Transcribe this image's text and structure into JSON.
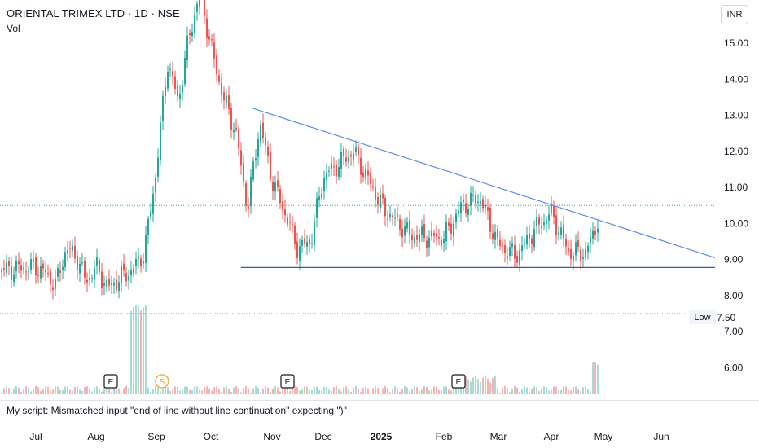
{
  "header": {
    "symbol": "ORIENTAL TRIMEX LTD",
    "interval": "1D",
    "exchange": "NSE",
    "separator": " · ",
    "volume_label": "Vol",
    "currency_button": "INR"
  },
  "script_error": "My script: Mismatched input \"end of line without line continuation\" expecting \")\"",
  "low_marker": {
    "label": "Low",
    "value": "7.50"
  },
  "colors": {
    "up": "#26a69a",
    "down": "#ef5350",
    "trendline": "#5b8def",
    "support": "#2b5db0",
    "last_price": "#26a69a",
    "event_e": "#131722",
    "event_s": "#f0a32a"
  },
  "chart_data": {
    "type": "candlestick",
    "y_axis": {
      "ticks": [
        "6.00",
        "7.00",
        "8.00",
        "9.00",
        "10.00",
        "11.00",
        "12.00",
        "13.00",
        "14.00",
        "15.00"
      ],
      "range": [
        5.4,
        16.2
      ]
    },
    "x_axis": {
      "ticks": [
        "Jul",
        "Aug",
        "Sep",
        "Oct",
        "Nov",
        "Dec",
        "2025",
        "Feb",
        "Mar",
        "Apr",
        "May",
        "Jun"
      ]
    },
    "price_path": [
      [
        "Jul",
        8.8
      ],
      [
        "Jul",
        8.6
      ],
      [
        "Jul",
        8.3
      ],
      [
        "Jul",
        9.3
      ],
      [
        "Jul",
        9.1
      ],
      [
        "Jul",
        8.4
      ],
      [
        "Aug",
        8.8
      ],
      [
        "Aug",
        8.2
      ],
      [
        "Aug",
        8.5
      ],
      [
        "Aug",
        8.7
      ],
      [
        "Aug",
        9.2
      ],
      [
        "Sep",
        11.5
      ],
      [
        "Sep",
        14.5
      ],
      [
        "Sep",
        13.4
      ],
      [
        "Sep",
        15.2
      ],
      [
        "Sep",
        16.4
      ],
      [
        "Oct",
        14.9
      ],
      [
        "Oct",
        13.5
      ],
      [
        "Oct",
        12.6
      ],
      [
        "Oct",
        10.4
      ],
      [
        "Oct",
        12.8
      ],
      [
        "Nov",
        11.2
      ],
      [
        "Nov",
        10.3
      ],
      [
        "Nov",
        9.3
      ],
      [
        "Nov",
        9.5
      ],
      [
        "Dec",
        11.3
      ],
      [
        "Dec",
        12.0
      ],
      [
        "Dec",
        10.4
      ],
      [
        "Dec",
        9.6
      ],
      [
        "2025",
        9.8
      ],
      [
        "2025",
        10.3
      ],
      [
        "2025",
        10.1
      ],
      [
        "Feb",
        9.6
      ],
      [
        "Feb",
        10.5
      ],
      [
        "Feb",
        10.7
      ],
      [
        "Mar",
        9.4
      ],
      [
        "Mar",
        9.1
      ],
      [
        "Mar",
        9.8
      ],
      [
        "Apr",
        10.3
      ],
      [
        "Apr",
        9.2
      ],
      [
        "Apr",
        9.2
      ],
      [
        "May",
        10.5
      ]
    ],
    "last_price": 10.5,
    "support_level": 8.78,
    "low_level": 7.5,
    "trendline": {
      "from": [
        "Oct",
        13.2
      ],
      "to": [
        "Jun",
        9.05
      ]
    },
    "events": [
      {
        "type": "E",
        "month": "Aug"
      },
      {
        "type": "S",
        "month": "Sep"
      },
      {
        "type": "E",
        "month": "Nov"
      },
      {
        "type": "E",
        "month": "Feb"
      }
    ]
  }
}
